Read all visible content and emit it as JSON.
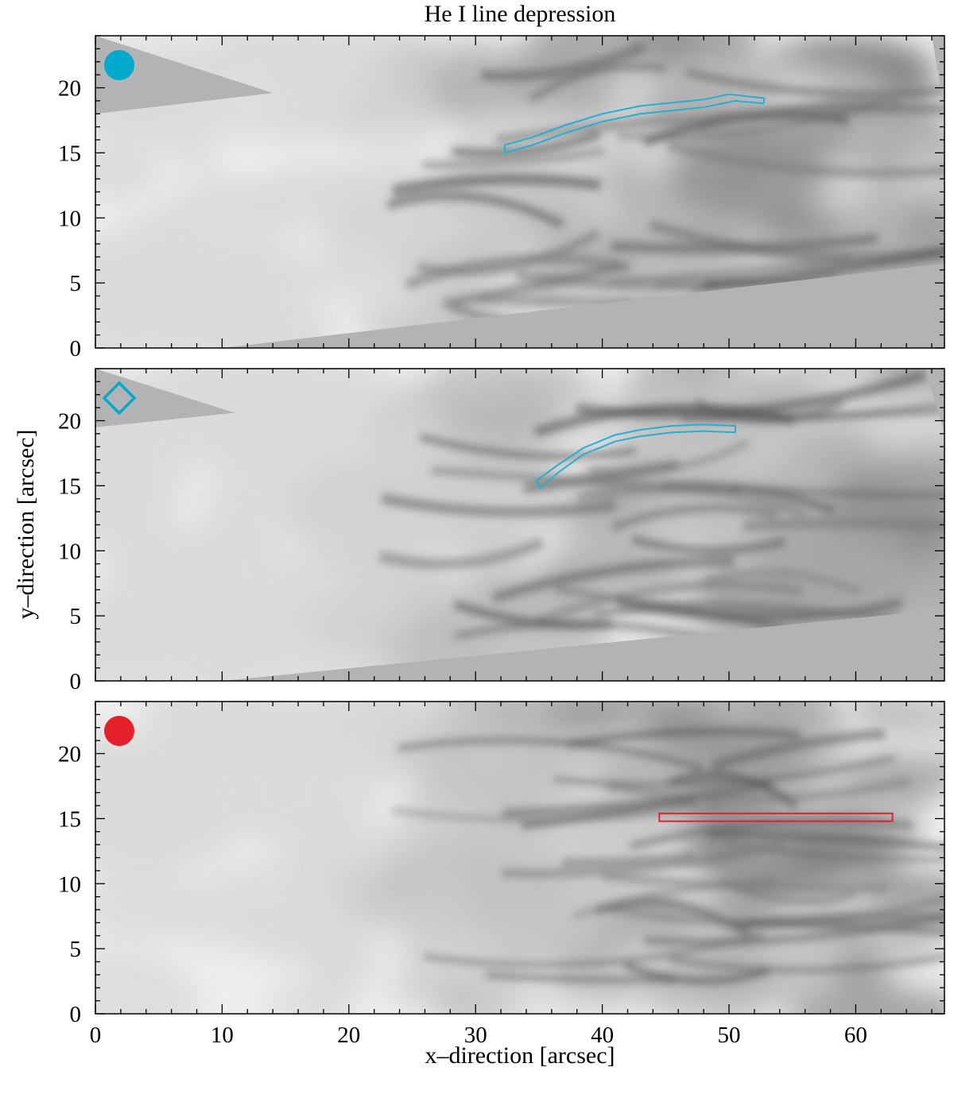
{
  "chart_data": [
    {
      "type": "heatmap",
      "panel": "top",
      "title": "He I line depression",
      "xlim": [
        0,
        67
      ],
      "ylim": [
        0,
        24
      ],
      "marker": {
        "shape": "filled-circle",
        "color": "#00aacc"
      },
      "contour": {
        "color": "#22b0d4",
        "x": [
          32.3,
          34.5,
          37.0,
          40.0,
          43.0,
          46.0,
          48.0,
          50.0,
          52.8,
          52.7,
          50.5,
          48.0,
          46.0,
          43.0,
          40.0,
          37.0,
          34.5,
          32.3
        ],
        "y": [
          15.6,
          16.2,
          17.1,
          18.0,
          18.6,
          18.9,
          19.1,
          19.5,
          19.2,
          18.8,
          19.0,
          18.5,
          18.3,
          18.0,
          17.4,
          16.5,
          15.6,
          15.0
        ]
      },
      "blank_corners": [
        {
          "corner": "top-left",
          "x": [
            0,
            0,
            14
          ],
          "y": [
            24,
            18,
            19.6
          ]
        },
        {
          "corner": "top-right",
          "x": [
            66,
            67,
            67
          ],
          "y": [
            24,
            24,
            18
          ]
        },
        {
          "corner": "bottom-right",
          "x": [
            67,
            67,
            10
          ],
          "y": [
            0,
            6.5,
            0
          ]
        }
      ]
    },
    {
      "type": "heatmap",
      "panel": "middle",
      "xlim": [
        0,
        67
      ],
      "ylim": [
        0,
        24
      ],
      "marker": {
        "shape": "open-diamond",
        "color": "#00aacc"
      },
      "contour": {
        "color": "#22b0d4",
        "x": [
          34.8,
          36.5,
          38.5,
          41.0,
          43.0,
          45.5,
          48.0,
          50.5,
          50.5,
          48.0,
          45.5,
          43.0,
          41.0,
          38.5,
          36.5,
          35.1
        ],
        "y": [
          15.4,
          16.6,
          17.9,
          18.9,
          19.3,
          19.6,
          19.7,
          19.6,
          19.1,
          19.2,
          19.1,
          18.8,
          18.4,
          17.4,
          16.0,
          14.8
        ]
      },
      "blank_corners": [
        {
          "corner": "top-left",
          "x": [
            0,
            0,
            11
          ],
          "y": [
            24,
            19.5,
            20.6
          ]
        },
        {
          "corner": "top-right",
          "x": [
            65.5,
            67,
            67
          ],
          "y": [
            24,
            24,
            19
          ]
        },
        {
          "corner": "bottom-right",
          "x": [
            67,
            67,
            10
          ],
          "y": [
            0,
            5.5,
            0
          ]
        }
      ]
    },
    {
      "type": "heatmap",
      "panel": "bottom",
      "xlim": [
        0,
        67
      ],
      "ylim": [
        0,
        24
      ],
      "xlabel": "x–direction  [arcsec]",
      "marker": {
        "shape": "filled-circle",
        "color": "#e4202a"
      },
      "rectangle": {
        "color": "#e4202a",
        "x0": 44.5,
        "x1": 62.9,
        "y0": 14.8,
        "y1": 15.4
      }
    }
  ],
  "ylabel": "y–direction  [arcsec]",
  "x_ticks": [
    0,
    10,
    20,
    30,
    40,
    50,
    60
  ],
  "y_ticks": [
    0,
    5,
    10,
    15,
    20
  ],
  "colors": {
    "map_light": "#eeeeee",
    "map_dark": "#3a3a3a",
    "blank_fill": "#b3b3b5"
  }
}
